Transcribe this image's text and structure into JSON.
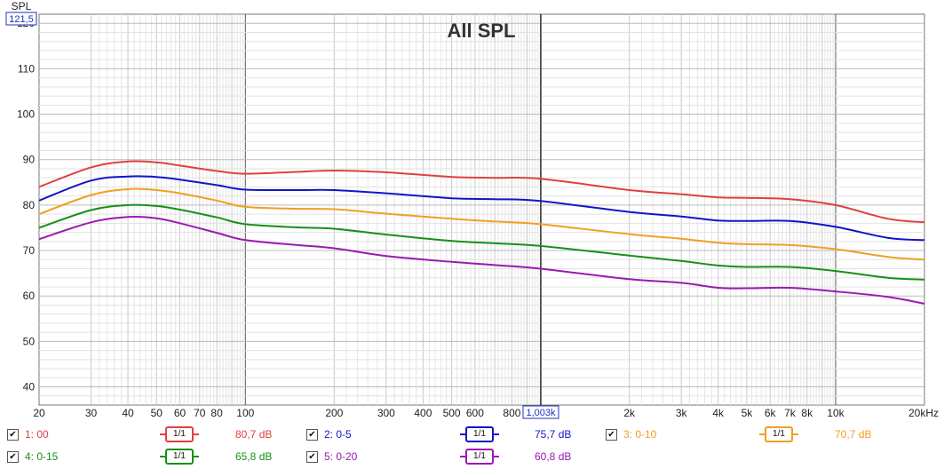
{
  "chart_data": {
    "type": "line",
    "title": "All SPL",
    "ylabel": "SPL",
    "y_top_readout": "121,5",
    "cursor_readout": "1,003k",
    "x_scale": "log",
    "xlim": [
      20,
      20000
    ],
    "ylim": [
      36,
      122
    ],
    "grid": true,
    "x_ticks": [
      {
        "v": 20,
        "l": "20"
      },
      {
        "v": 30,
        "l": "30"
      },
      {
        "v": 40,
        "l": "40"
      },
      {
        "v": 50,
        "l": "50"
      },
      {
        "v": 60,
        "l": "60"
      },
      {
        "v": 70,
        "l": "70"
      },
      {
        "v": 80,
        "l": "80"
      },
      {
        "v": 100,
        "l": "100"
      },
      {
        "v": 200,
        "l": "200"
      },
      {
        "v": 300,
        "l": "300"
      },
      {
        "v": 400,
        "l": "400"
      },
      {
        "v": 500,
        "l": "500"
      },
      {
        "v": 600,
        "l": "600"
      },
      {
        "v": 800,
        "l": "800"
      },
      {
        "v": 2000,
        "l": "2k"
      },
      {
        "v": 3000,
        "l": "3k"
      },
      {
        "v": 4000,
        "l": "4k"
      },
      {
        "v": 5000,
        "l": "5k"
      },
      {
        "v": 6000,
        "l": "6k"
      },
      {
        "v": 7000,
        "l": "7k"
      },
      {
        "v": 8000,
        "l": "8k"
      },
      {
        "v": 10000,
        "l": "10k"
      },
      {
        "v": 20000,
        "l": "20kHz"
      }
    ],
    "y_ticks": [
      40,
      50,
      60,
      70,
      80,
      90,
      100,
      110,
      120
    ],
    "x": [
      20,
      30,
      40,
      50,
      60,
      80,
      100,
      150,
      200,
      300,
      500,
      700,
      1000,
      2000,
      3000,
      4000,
      5000,
      7000,
      10000,
      15000,
      20000
    ],
    "series": [
      {
        "name": "1: 00",
        "color": "#e04040",
        "values": [
          84.0,
          88.3,
          89.6,
          89.4,
          88.7,
          87.5,
          86.9,
          87.3,
          87.6,
          87.2,
          86.2,
          86.0,
          85.8,
          83.3,
          82.4,
          81.7,
          81.6,
          81.3,
          80.0,
          77.0,
          76.2
        ]
      },
      {
        "name": "2: 0-5",
        "color": "#1414c8",
        "values": [
          81.0,
          85.4,
          86.3,
          86.2,
          85.6,
          84.4,
          83.4,
          83.3,
          83.3,
          82.6,
          81.5,
          81.3,
          80.9,
          78.5,
          77.5,
          76.6,
          76.5,
          76.5,
          75.2,
          72.8,
          72.3
        ]
      },
      {
        "name": "3: 0-10",
        "color": "#f0a020",
        "values": [
          78.0,
          82.2,
          83.5,
          83.3,
          82.6,
          81.0,
          79.6,
          79.2,
          79.1,
          78.1,
          77.0,
          76.4,
          75.8,
          73.6,
          72.6,
          71.7,
          71.4,
          71.2,
          70.3,
          68.6,
          68.0
        ]
      },
      {
        "name": "4: 0-15",
        "color": "#189018",
        "values": [
          75.0,
          78.9,
          80.0,
          79.8,
          79.0,
          77.3,
          75.8,
          75.1,
          74.8,
          73.5,
          72.1,
          71.6,
          71.0,
          68.9,
          67.7,
          66.7,
          66.4,
          66.4,
          65.5,
          64.0,
          63.6
        ]
      },
      {
        "name": "5: 0-20",
        "color": "#9a1ab0",
        "values": [
          72.5,
          76.2,
          77.4,
          77.1,
          76.0,
          73.9,
          72.3,
          71.2,
          70.5,
          68.8,
          67.5,
          66.8,
          66.0,
          63.7,
          62.9,
          61.8,
          61.7,
          61.8,
          61.0,
          59.8,
          58.3
        ]
      }
    ]
  },
  "legend": [
    {
      "label": "1: 00",
      "color": "#e04040",
      "smoothing": "1/1",
      "value": "80,7 dB",
      "checked": "✔"
    },
    {
      "label": "2: 0-5",
      "color": "#1414c8",
      "smoothing": "1/1",
      "value": "75,7 dB",
      "checked": "✔"
    },
    {
      "label": "3: 0-10",
      "color": "#f0a020",
      "smoothing": "1/1",
      "value": "70,7 dB",
      "checked": "✔"
    },
    {
      "label": "4: 0-15",
      "color": "#189018",
      "smoothing": "1/1",
      "value": "65,8 dB",
      "checked": "✔"
    },
    {
      "label": "5: 0-20",
      "color": "#9a1ab0",
      "smoothing": "1/1",
      "value": "60,8 dB",
      "checked": "✔"
    }
  ]
}
